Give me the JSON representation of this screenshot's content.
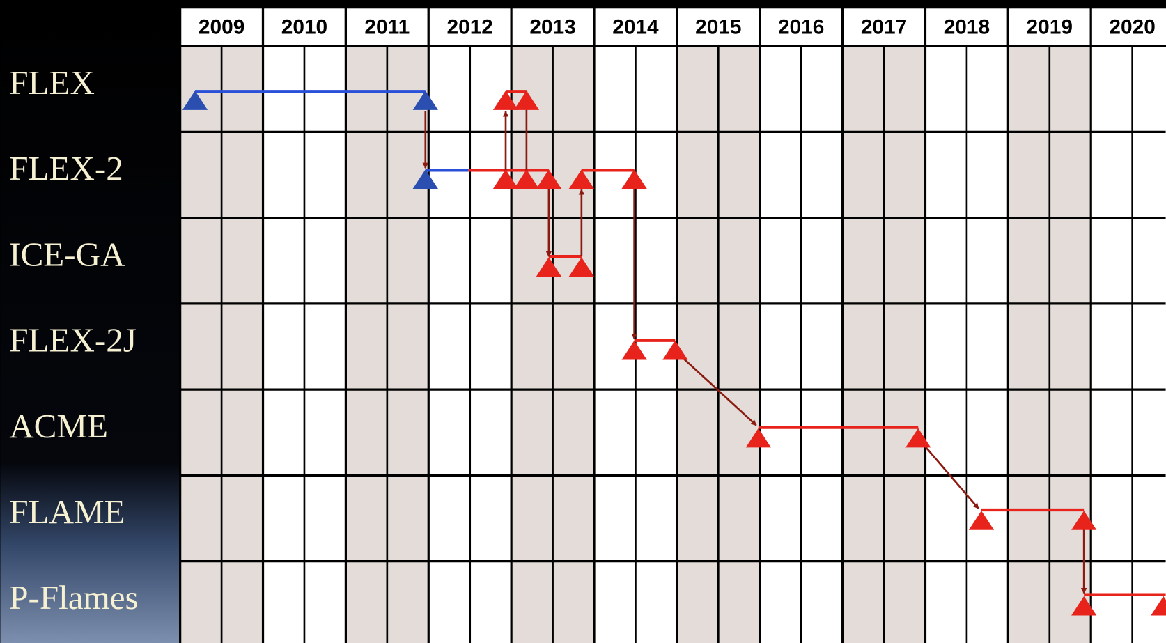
{
  "years": [
    "2009",
    "2010",
    "2011",
    "2012",
    "2013",
    "2014",
    "2015",
    "2016",
    "2017",
    "2018",
    "2019",
    "2020"
  ],
  "rows": [
    "FLEX",
    "FLEX-2",
    "ICE-GA",
    "FLEX-2J",
    "ACME",
    "FLAME",
    "P-Flames"
  ]
}
